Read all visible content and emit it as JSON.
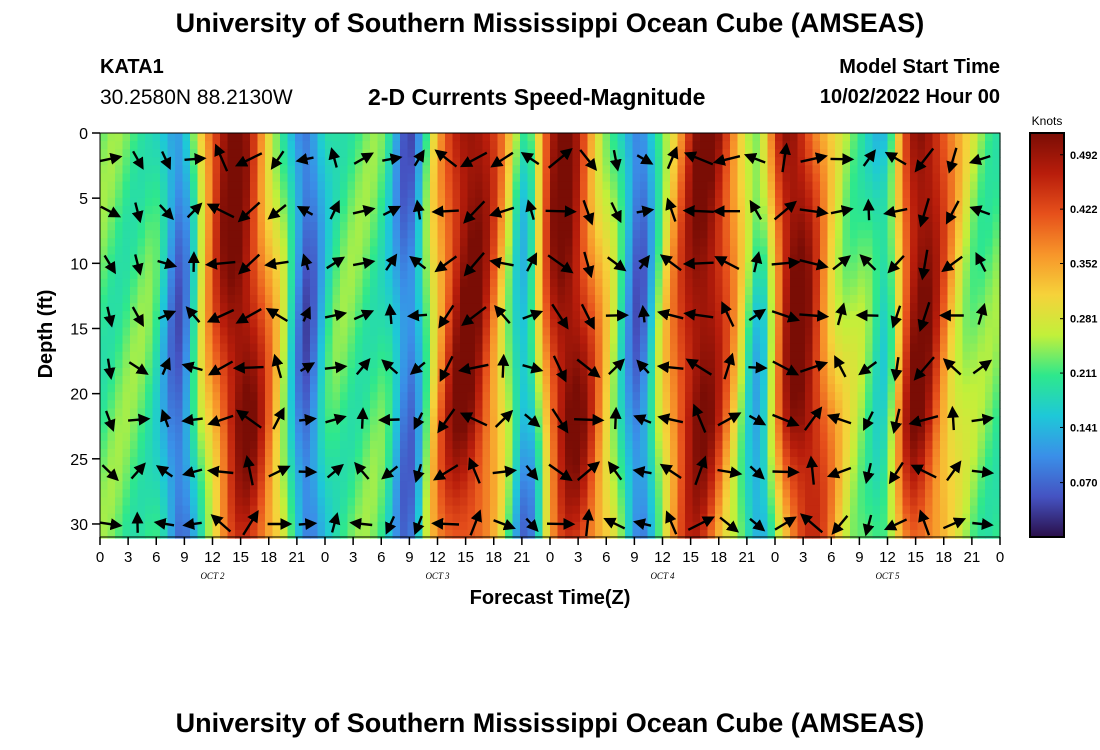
{
  "header": {
    "title": "University of Southern Mississippi Ocean Cube (AMSEAS)",
    "station": "KATA1",
    "coords": "30.2580N  88.2130W",
    "subtitle": "2-D Currents Speed-Magnitude",
    "start_label": "Model Start Time",
    "start_value": "10/02/2022 Hour 00"
  },
  "footer": {
    "title": "University of Southern Mississippi Ocean Cube (AMSEAS)"
  },
  "chart_data": {
    "type": "heatmap",
    "title": "2-D Currents Speed-Magnitude",
    "xlabel": "Forecast Time(Z)",
    "ylabel": "Depth (ft)",
    "x_hours_range": [
      0,
      96
    ],
    "x_tick_labels": [
      "0",
      "3",
      "6",
      "9",
      "12",
      "15",
      "18",
      "21",
      "0",
      "3",
      "6",
      "9",
      "12",
      "15",
      "18",
      "21",
      "0",
      "3",
      "6",
      "9",
      "12",
      "15",
      "18",
      "21",
      "0",
      "3",
      "6",
      "9",
      "12",
      "15",
      "18",
      "21",
      "0"
    ],
    "day_labels": [
      {
        "label": "OCT 2",
        "hour": 12
      },
      {
        "label": "OCT 3",
        "hour": 36
      },
      {
        "label": "OCT 4",
        "hour": 60
      },
      {
        "label": "OCT 5",
        "hour": 84
      }
    ],
    "y_range": [
      0,
      31
    ],
    "y_ticks": [
      0,
      5,
      10,
      15,
      20,
      25,
      30
    ],
    "colorbar": {
      "title": "Knots",
      "min": 0.0,
      "max": 0.52,
      "tick_values": [
        0.492,
        0.422,
        0.352,
        0.281,
        0.211,
        0.141,
        0.07
      ],
      "tick_labels": [
        "0.492",
        "0.422",
        "0.352",
        "0.281",
        "0.211",
        "0.141",
        "0.070"
      ]
    },
    "speed_maxima_hours": [
      14.5,
      39.5,
      49.5,
      64.5,
      74.0,
      87.5
    ],
    "speed_minima_hours": [
      8.5,
      22.0,
      33.0,
      45.5,
      57.5,
      70.5,
      84.0
    ],
    "vectors": "current direction arrows at ~1-hour x ~4-ft spacing",
    "colormap": [
      "#2a0f4a",
      "#4553c2",
      "#3a8fe8",
      "#1ec8d8",
      "#2ee88c",
      "#c2f03a",
      "#f6d23a",
      "#f7952a",
      "#e6501b",
      "#b81d0b",
      "#7a0d05"
    ]
  }
}
